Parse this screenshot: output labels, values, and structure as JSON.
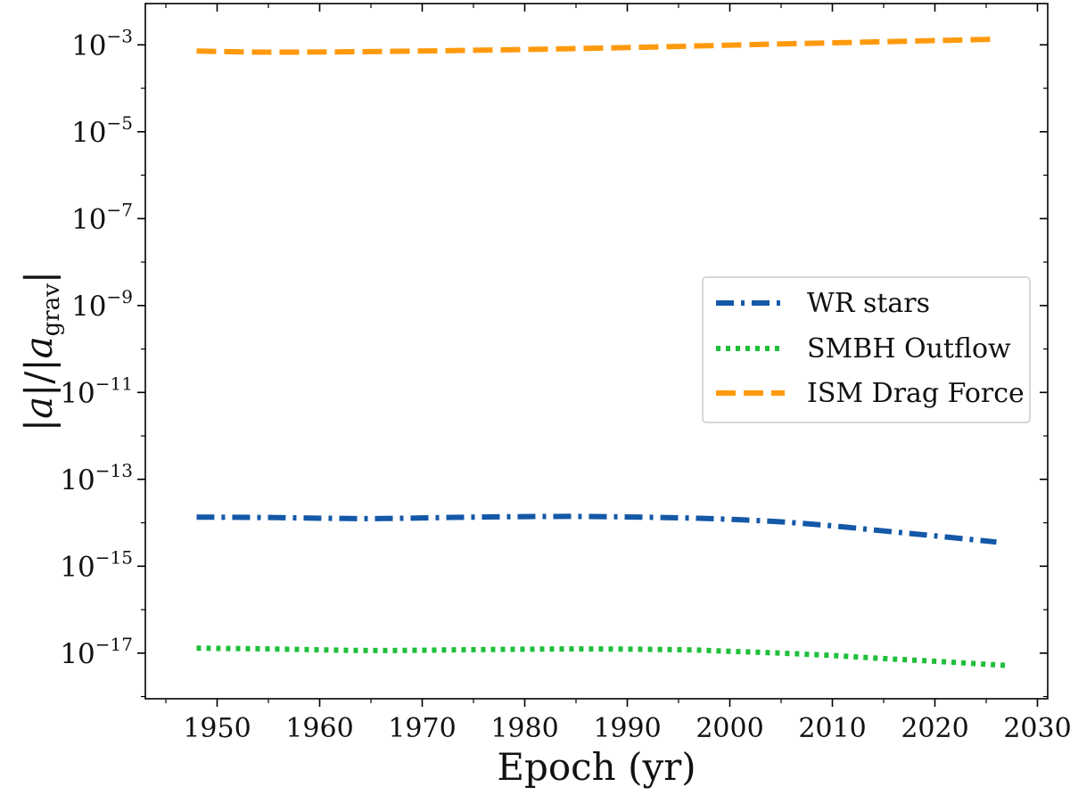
{
  "chart_data": {
    "type": "line",
    "xlabel": "Epoch (yr)",
    "ylabel": "|→a| / |→a_grav|",
    "ylabel_parts": {
      "num": "a",
      "den": "a",
      "den_sub": "grav"
    },
    "xlim": [
      1943,
      2031
    ],
    "xticks": [
      1950,
      1960,
      1970,
      1980,
      1990,
      2000,
      2010,
      2020,
      2030
    ],
    "ylim_log10": [
      -18.05,
      -2.05
    ],
    "yticks": [
      {
        "exp": -3,
        "base": "10",
        "sup": "−3"
      },
      {
        "exp": -5,
        "base": "10",
        "sup": "−5"
      },
      {
        "exp": -7,
        "base": "10",
        "sup": "−7"
      },
      {
        "exp": -9,
        "base": "10",
        "sup": "−9"
      },
      {
        "exp": -11,
        "base": "10",
        "sup": "−11"
      },
      {
        "exp": -13,
        "base": "10",
        "sup": "−13"
      },
      {
        "exp": -15,
        "base": "10",
        "sup": "−15"
      },
      {
        "exp": -17,
        "base": "10",
        "sup": "−17"
      }
    ],
    "y_scale": "log",
    "grid": false,
    "legend_position": "center-right",
    "series": [
      {
        "name": "WR stars",
        "color": "#1458a8",
        "linestyle": "dashdot",
        "x": [
          1948,
          1955,
          1965,
          1975,
          1985,
          1995,
          2000,
          2005,
          2010,
          2015,
          2020,
          2026
        ],
        "y": [
          1.35e-14,
          1.32e-14,
          1.25e-14,
          1.35e-14,
          1.4e-14,
          1.3e-14,
          1.2e-14,
          1.05e-14,
          8.5e-15,
          6.5e-15,
          5e-15,
          3.6e-15
        ]
      },
      {
        "name": "SMBH Outflow",
        "color": "#1fbf3a",
        "linestyle": "dotted",
        "x": [
          1948,
          1955,
          1965,
          1975,
          1985,
          1995,
          2000,
          2005,
          2010,
          2015,
          2020,
          2027
        ],
        "y": [
          1.3e-17,
          1.25e-17,
          1.15e-17,
          1.2e-17,
          1.25e-17,
          1.2e-17,
          1.1e-17,
          1e-17,
          8.8e-18,
          7.5e-18,
          6.5e-18,
          5.2e-18
        ]
      },
      {
        "name": "ISM Drag Force",
        "color": "#ff9a0e",
        "linestyle": "dashed",
        "x": [
          1948,
          1955,
          1965,
          1975,
          1985,
          1995,
          2005,
          2015,
          2026
        ],
        "y": [
          0.00072,
          0.00068,
          0.0007,
          0.00075,
          0.00082,
          0.00092,
          0.00105,
          0.00118,
          0.00135
        ]
      }
    ]
  }
}
